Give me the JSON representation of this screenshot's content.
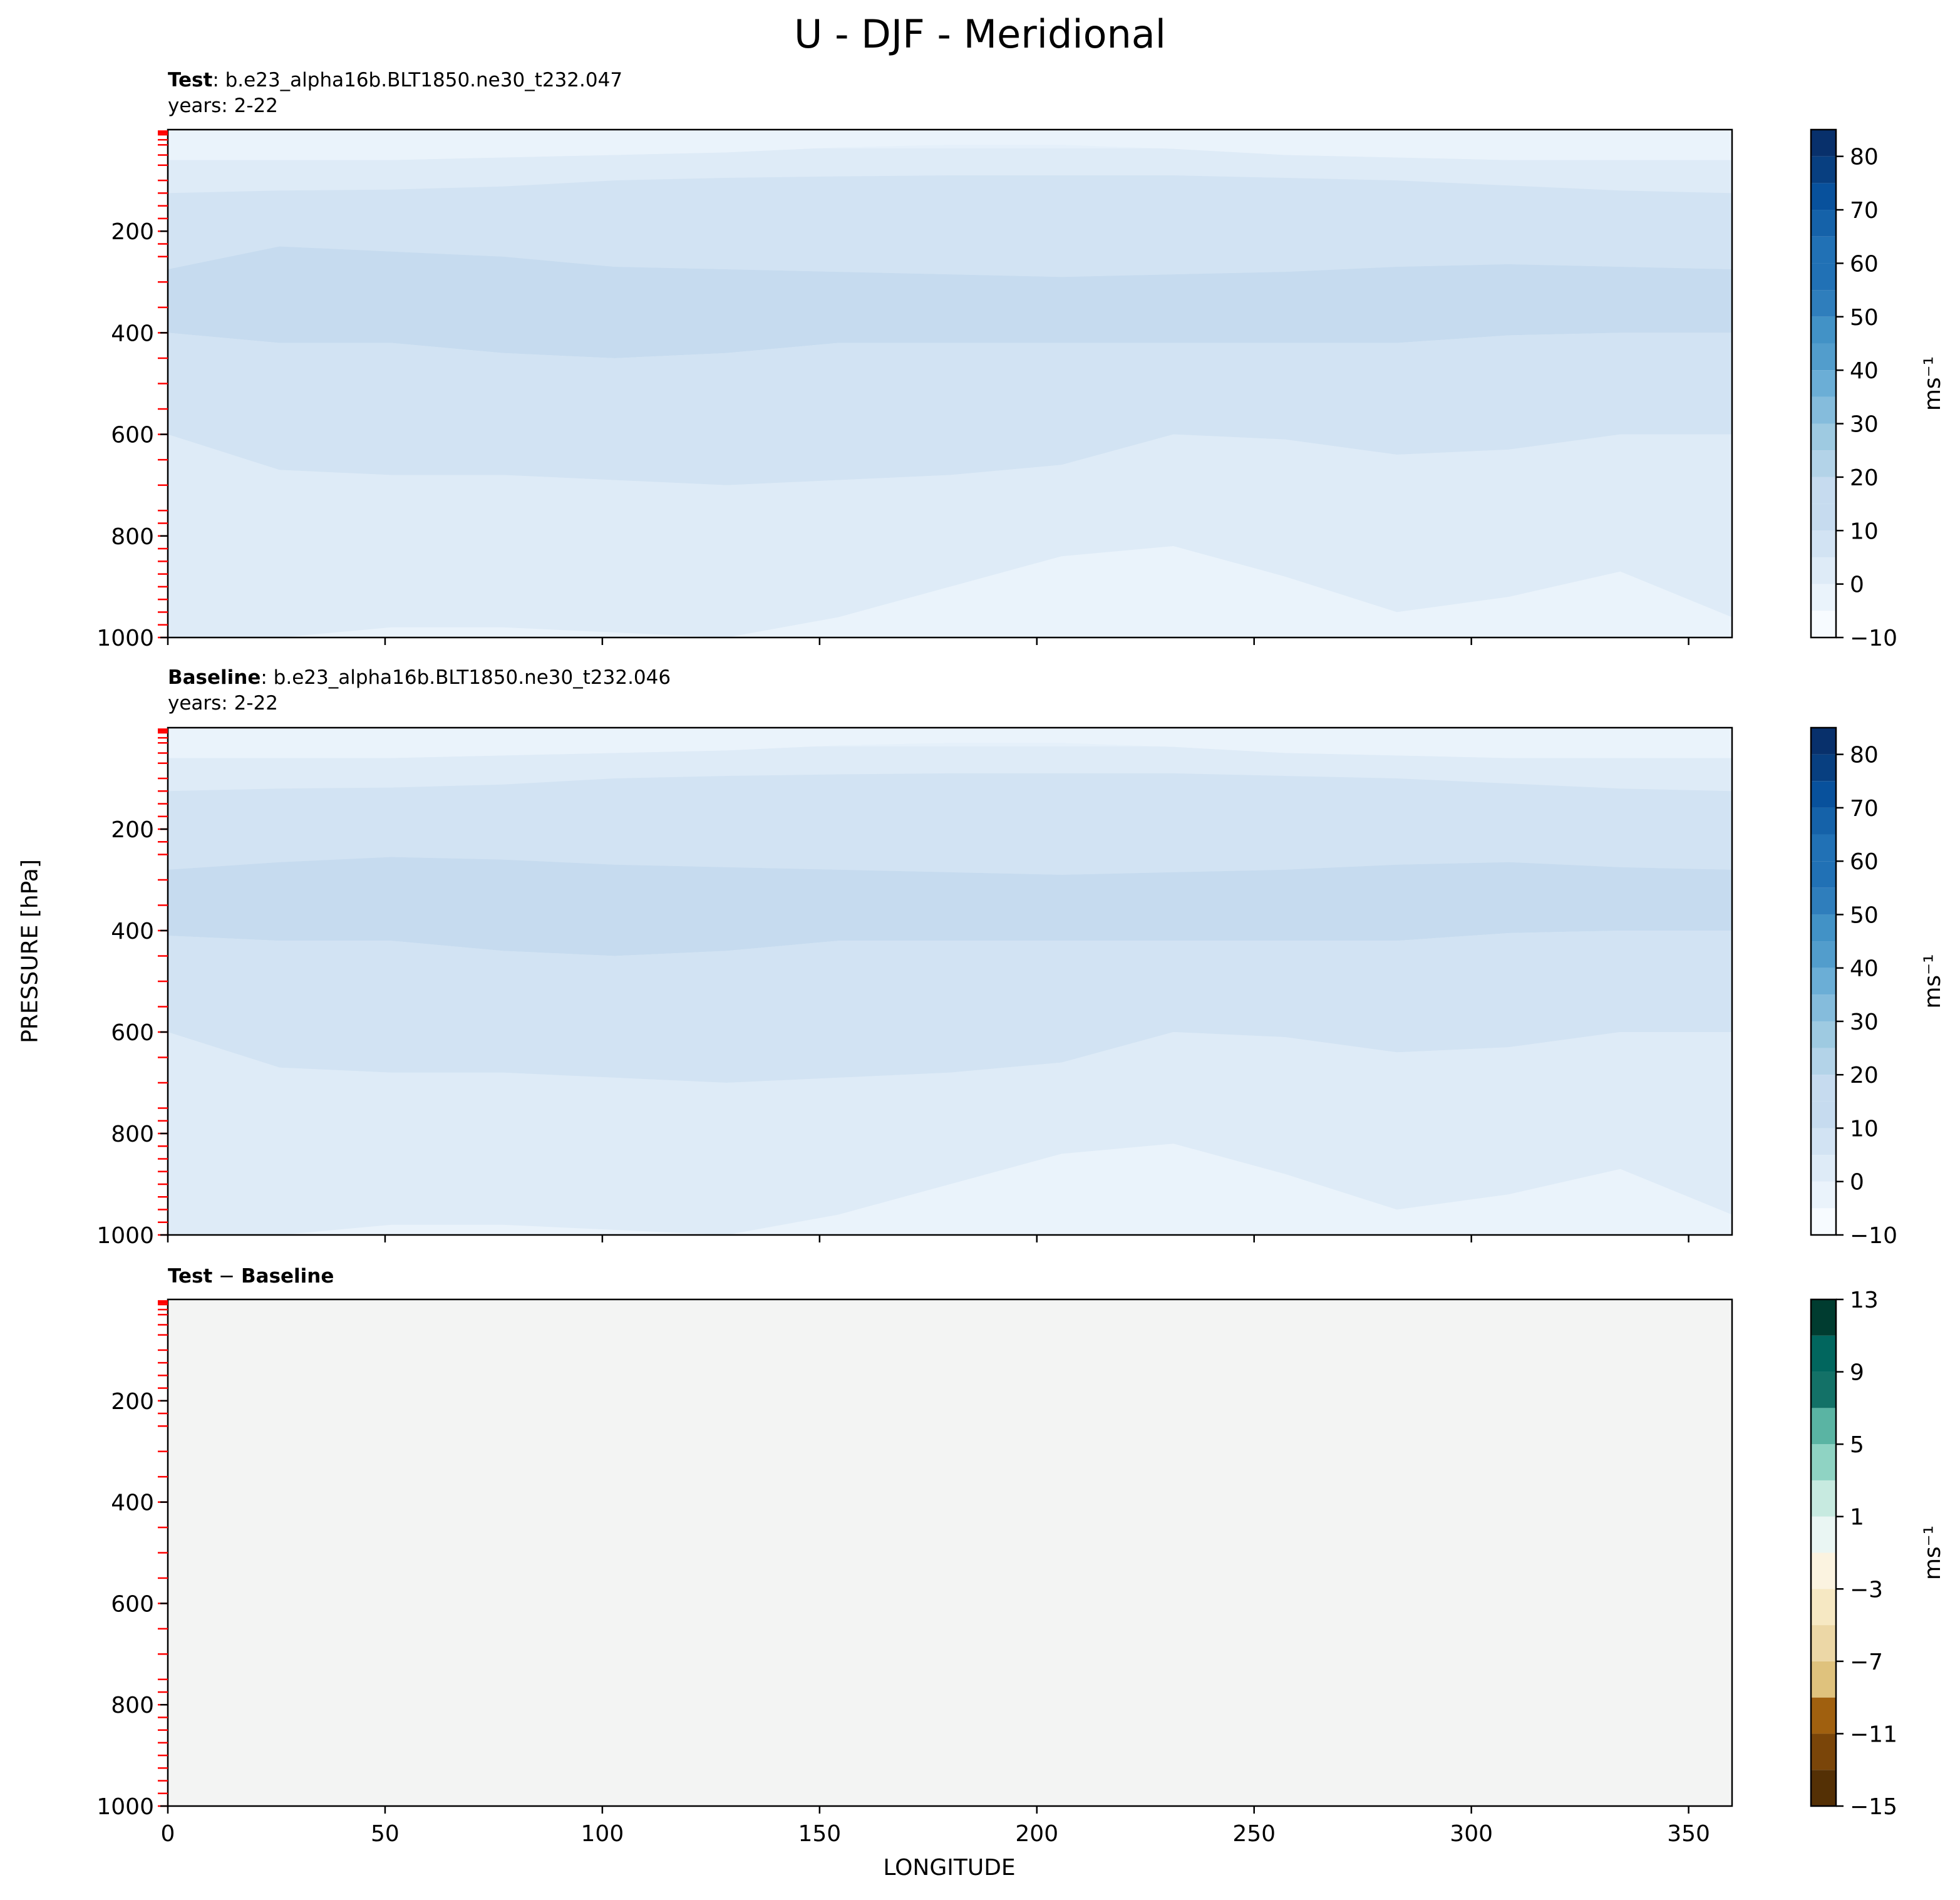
{
  "figure": {
    "title": "U - DJF - Meridional",
    "ylabel": "PRESSURE [hPa]",
    "xlabel": "LONGITUDE"
  },
  "colors": {
    "blues_levels": [
      "#f7fbff",
      "#eaf3fb",
      "#deebf7",
      "#d2e3f3",
      "#c6dbef",
      "#b3d3e8",
      "#9ecae1",
      "#85bcdc",
      "#6baed6",
      "#529dcc",
      "#4292c6",
      "#2f7ebc",
      "#2171b5",
      "#1562a9",
      "#08519c",
      "#083f80",
      "#08306b"
    ],
    "diff_levels": [
      "#543005",
      "#7a4509",
      "#a0600f",
      "#c3862e",
      "#dfc27d",
      "#ecd7a6",
      "#f6e8c3",
      "#fbf3e0",
      "#ffffff",
      "#eaf6f3",
      "#c7eae0",
      "#8fd3c3",
      "#5ab4a3",
      "#35978f",
      "#137167",
      "#01665e",
      "#003c30"
    ],
    "panel_fill_diff": "#f3f4f3",
    "ymarker": "#ff0000"
  },
  "chart_data": [
    {
      "type": "contourf",
      "panel": "test",
      "title_bold": "Test",
      "title_text": ": b.e23_alpha16b.BLT1850.ne30_t232.047",
      "years": "years: 2-22",
      "xlim": [
        0,
        360
      ],
      "ylim": [
        1000,
        0
      ],
      "x_ticks": [
        0,
        50,
        100,
        150,
        200,
        250,
        300,
        350
      ],
      "y_ticks": [
        200,
        400,
        600,
        800,
        1000
      ],
      "pressure_levels": [
        3,
        5,
        7,
        10,
        20,
        30,
        50,
        70,
        100,
        125,
        150,
        175,
        200,
        225,
        250,
        300,
        350,
        400,
        450,
        500,
        550,
        600,
        650,
        700,
        750,
        775,
        800,
        825,
        850,
        875,
        900,
        925,
        950,
        975,
        1000
      ],
      "colorbar": {
        "levels": [
          -10,
          -5,
          0,
          5,
          10,
          15,
          20,
          25,
          30,
          35,
          40,
          45,
          50,
          55,
          60,
          65,
          70,
          75,
          80,
          85
        ],
        "ticks": [
          -10,
          0,
          10,
          20,
          30,
          40,
          50,
          60,
          70,
          80
        ],
        "tick_labels": [
          "−10",
          "0",
          "10",
          "20",
          "30",
          "40",
          "50",
          "60",
          "70",
          "80"
        ],
        "label": "ms⁻¹"
      },
      "contour_boundaries": [
        {
          "level_index": 2,
          "values_hpa": [
            60,
            60,
            60,
            55,
            50,
            45,
            35,
            30,
            30,
            38,
            50,
            55,
            60,
            60,
            60
          ]
        },
        {
          "level_index": 3,
          "values_hpa": [
            125,
            120,
            118,
            112,
            100,
            95,
            92,
            90,
            90,
            90,
            95,
            100,
            110,
            120,
            125
          ]
        },
        {
          "level_index": 4,
          "values_hpa": [
            275,
            230,
            240,
            250,
            270,
            275,
            280,
            285,
            290,
            285,
            280,
            270,
            265,
            270,
            275
          ]
        },
        {
          "level_index": 3,
          "values_hpa": [
            400,
            420,
            420,
            440,
            450,
            440,
            420,
            420,
            420,
            420,
            420,
            420,
            405,
            400,
            400
          ]
        },
        {
          "level_index": 2,
          "values_hpa": [
            600,
            670,
            680,
            680,
            690,
            700,
            690,
            680,
            660,
            600,
            610,
            640,
            630,
            600,
            600
          ]
        },
        {
          "level_index": 1,
          "values_hpa": [
            1000,
            1000,
            980,
            980,
            990,
            1000,
            960,
            900,
            840,
            820,
            880,
            950,
            920,
            870,
            960
          ]
        }
      ]
    },
    {
      "type": "contourf",
      "panel": "baseline",
      "title_bold": "Baseline",
      "title_text": ": b.e23_alpha16b.BLT1850.ne30_t232.046",
      "years": "years: 2-22",
      "xlim": [
        0,
        360
      ],
      "ylim": [
        1000,
        0
      ],
      "x_ticks": [
        0,
        50,
        100,
        150,
        200,
        250,
        300,
        350
      ],
      "y_ticks": [
        200,
        400,
        600,
        800,
        1000
      ],
      "pressure_levels": [
        3,
        5,
        7,
        10,
        20,
        30,
        50,
        70,
        100,
        125,
        150,
        175,
        200,
        225,
        250,
        300,
        350,
        400,
        450,
        500,
        550,
        600,
        650,
        700,
        750,
        775,
        800,
        825,
        850,
        875,
        900,
        925,
        950,
        975,
        1000
      ],
      "colorbar": {
        "levels": [
          -10,
          -5,
          0,
          5,
          10,
          15,
          20,
          25,
          30,
          35,
          40,
          45,
          50,
          55,
          60,
          65,
          70,
          75,
          80,
          85
        ],
        "ticks": [
          -10,
          0,
          10,
          20,
          30,
          40,
          50,
          60,
          70,
          80
        ],
        "tick_labels": [
          "−10",
          "0",
          "10",
          "20",
          "30",
          "40",
          "50",
          "60",
          "70",
          "80"
        ],
        "label": "ms⁻¹"
      },
      "contour_boundaries": [
        {
          "level_index": 2,
          "values_hpa": [
            60,
            60,
            60,
            55,
            50,
            45,
            35,
            30,
            30,
            38,
            50,
            55,
            60,
            60,
            60
          ]
        },
        {
          "level_index": 3,
          "values_hpa": [
            125,
            120,
            118,
            112,
            100,
            95,
            92,
            90,
            90,
            90,
            95,
            100,
            110,
            120,
            125
          ]
        },
        {
          "level_index": 4,
          "values_hpa": [
            280,
            265,
            255,
            260,
            270,
            275,
            280,
            285,
            290,
            285,
            280,
            270,
            265,
            275,
            280
          ]
        },
        {
          "level_index": 3,
          "values_hpa": [
            410,
            420,
            420,
            440,
            450,
            440,
            420,
            420,
            420,
            420,
            420,
            420,
            405,
            400,
            400
          ]
        },
        {
          "level_index": 2,
          "values_hpa": [
            600,
            670,
            680,
            680,
            690,
            700,
            690,
            680,
            660,
            600,
            610,
            640,
            630,
            600,
            600
          ]
        },
        {
          "level_index": 1,
          "values_hpa": [
            1000,
            1000,
            980,
            980,
            990,
            1000,
            960,
            900,
            840,
            820,
            880,
            950,
            920,
            870,
            960
          ]
        }
      ]
    },
    {
      "type": "contourf",
      "panel": "difference",
      "title_bold_1": "Test",
      "title_op": " − ",
      "title_bold_2": "Baseline",
      "xlim": [
        0,
        360
      ],
      "ylim": [
        1000,
        0
      ],
      "x_ticks": [
        0,
        50,
        100,
        150,
        200,
        250,
        300,
        350
      ],
      "x_tick_labels": [
        "0",
        "50",
        "100",
        "150",
        "200",
        "250",
        "300",
        "350"
      ],
      "y_ticks": [
        200,
        400,
        600,
        800,
        1000
      ],
      "pressure_levels": [
        3,
        5,
        7,
        10,
        20,
        30,
        50,
        70,
        100,
        125,
        150,
        175,
        200,
        225,
        250,
        300,
        350,
        400,
        450,
        500,
        550,
        600,
        650,
        700,
        750,
        775,
        800,
        825,
        850,
        875,
        900,
        925,
        950,
        975,
        1000
      ],
      "values": "all near zero",
      "colorbar": {
        "levels": [
          -15,
          -13,
          -11,
          -9,
          -7,
          -5,
          -3,
          -1,
          1,
          3,
          5,
          7,
          9,
          11,
          13
        ],
        "ticks": [
          -15,
          -11,
          -7,
          -3,
          1,
          5,
          9,
          13
        ],
        "tick_labels": [
          "−15",
          "−11",
          "−7",
          "−3",
          "1",
          "5",
          "9",
          "13"
        ],
        "label": "ms⁻¹"
      }
    }
  ]
}
